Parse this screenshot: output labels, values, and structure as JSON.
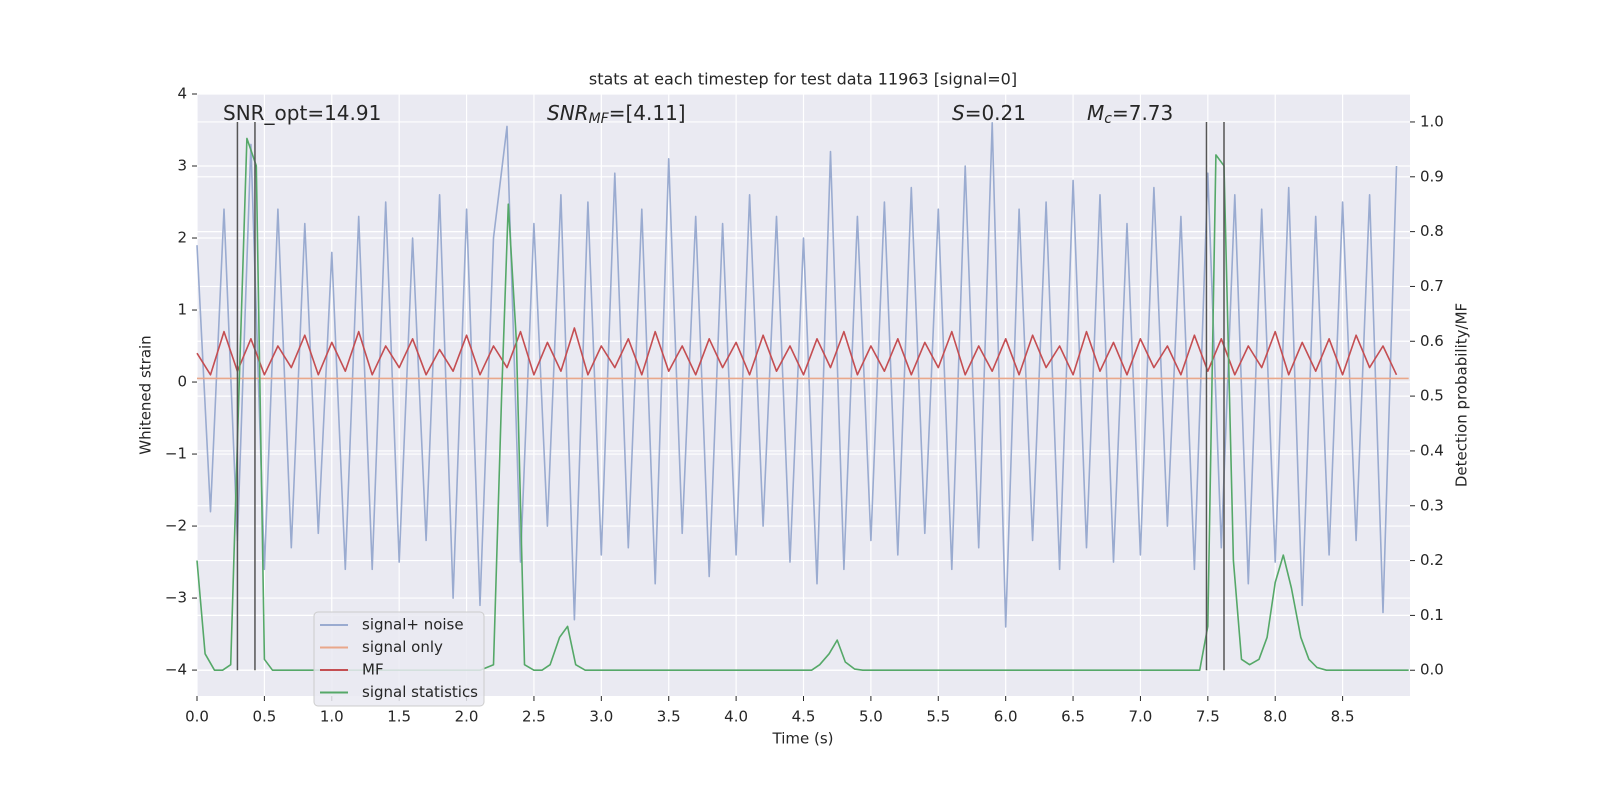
{
  "chart_data": {
    "type": "line",
    "title": "stats at each timestep for test data 11963 [signal=0]",
    "xlabel": "Time (s)",
    "ylabel": "Whitened strain",
    "y2label": "Detection probability/MF",
    "xlim": [
      0,
      9.0
    ],
    "ylim": [
      -4.36,
      4.0
    ],
    "y2lim": [
      -0.047,
      1.051
    ],
    "xticks": [
      {
        "value": 0,
        "label": "0.0"
      },
      0.5,
      {
        "value": 1,
        "label": "1.0"
      },
      1.5,
      {
        "value": 2,
        "label": "2.0"
      },
      2.5,
      {
        "value": 3,
        "label": "3.0"
      },
      3.5,
      {
        "value": 4,
        "label": "4.0"
      },
      4.5,
      {
        "value": 5,
        "label": "5.0"
      },
      5.5,
      {
        "value": 6,
        "label": "6.0"
      },
      6.5,
      {
        "value": 7,
        "label": "7.0"
      },
      7.5,
      {
        "value": 8,
        "label": "8.0"
      },
      8.5
    ],
    "yticks": [
      {
        "value": -4,
        "label": "−4"
      },
      {
        "value": -3,
        "label": "−3"
      },
      {
        "value": -2,
        "label": "−2"
      },
      {
        "value": -1,
        "label": "−1"
      },
      0,
      1,
      2,
      3,
      4
    ],
    "y2ticks": [
      {
        "value": 0,
        "label": "0.0"
      },
      0.1,
      0.2,
      0.3,
      0.4,
      0.5,
      0.6,
      0.7,
      0.8,
      0.9,
      {
        "value": 1,
        "label": "1.0"
      }
    ],
    "grid": true,
    "legend": "lower left",
    "vlines": [
      0.3,
      0.43,
      7.49,
      7.62
    ],
    "vline_color": "#555555",
    "annotations": [
      {
        "base": "SNR_opt=14.91"
      },
      {
        "base": "SNR",
        "sub": "MF",
        "rest": "=[4.11]"
      },
      {
        "base": "S",
        "rest": "=0.21"
      },
      {
        "base": "M",
        "sub": "c",
        "rest": "=7.73"
      }
    ],
    "series": [
      {
        "name": "signal+ noise",
        "color": "#9aabd0",
        "x": [
          0,
          0.1,
          0.2,
          0.3,
          0.4,
          0.5,
          0.6,
          0.7,
          0.8,
          0.9,
          1.0,
          1.1,
          1.2,
          1.3,
          1.4,
          1.5,
          1.6,
          1.7,
          1.8,
          1.9,
          2.0,
          2.1,
          2.2,
          2.3,
          2.4,
          2.5,
          2.6,
          2.7,
          2.8,
          2.9,
          3.0,
          3.1,
          3.2,
          3.3,
          3.4,
          3.5,
          3.6,
          3.7,
          3.8,
          3.9,
          4.0,
          4.1,
          4.2,
          4.3,
          4.4,
          4.5,
          4.6,
          4.7,
          4.8,
          4.9,
          5.0,
          5.1,
          5.2,
          5.3,
          5.4,
          5.5,
          5.6,
          5.7,
          5.8,
          5.9,
          6.0,
          6.1,
          6.2,
          6.3,
          6.4,
          6.5,
          6.6,
          6.7,
          6.8,
          6.9,
          7.0,
          7.1,
          7.2,
          7.3,
          7.4,
          7.5,
          7.6,
          7.7,
          7.8,
          7.9,
          8.0,
          8.1,
          8.2,
          8.3,
          8.4,
          8.5,
          8.6,
          8.7,
          8.8,
          8.9
        ],
        "values": [
          1.9,
          -1.8,
          2.4,
          -2.2,
          3.3,
          -2.6,
          2.4,
          -2.3,
          2.2,
          -2.1,
          1.8,
          -2.6,
          2.3,
          -2.6,
          2.5,
          -2.5,
          2.0,
          -2.2,
          2.6,
          -3.0,
          2.4,
          -3.1,
          2.0,
          3.55,
          -2.5,
          2.2,
          -2.0,
          2.6,
          -3.3,
          2.5,
          -2.4,
          2.9,
          -2.3,
          2.4,
          -2.8,
          3.1,
          -2.1,
          2.3,
          -2.7,
          2.2,
          -2.4,
          2.6,
          -2.0,
          2.3,
          -2.5,
          2.0,
          -2.8,
          3.2,
          -2.6,
          2.3,
          -2.2,
          2.5,
          -2.4,
          2.7,
          -2.1,
          2.4,
          -2.6,
          3.0,
          -2.3,
          3.6,
          -3.4,
          2.4,
          -2.2,
          2.5,
          -2.6,
          2.8,
          -2.3,
          2.6,
          -2.5,
          2.2,
          -2.4,
          2.7,
          -2.0,
          2.3,
          -2.6,
          2.9,
          -2.3,
          2.6,
          -2.8,
          2.4,
          -2.5,
          2.7,
          -3.1,
          2.3,
          -2.4,
          2.5,
          -2.2,
          2.6,
          -3.2,
          3.0
        ]
      },
      {
        "name": "signal only",
        "color": "#e9a78a",
        "x": [
          0,
          8.99
        ],
        "values": [
          0.05,
          0.05
        ]
      },
      {
        "name": "MF",
        "color": "#c44e52",
        "x": [
          0,
          0.1,
          0.2,
          0.3,
          0.4,
          0.5,
          0.6,
          0.7,
          0.8,
          0.9,
          1.0,
          1.1,
          1.2,
          1.3,
          1.4,
          1.5,
          1.6,
          1.7,
          1.8,
          1.9,
          2.0,
          2.1,
          2.2,
          2.3,
          2.4,
          2.5,
          2.6,
          2.7,
          2.8,
          2.9,
          3.0,
          3.1,
          3.2,
          3.3,
          3.4,
          3.5,
          3.6,
          3.7,
          3.8,
          3.9,
          4.0,
          4.1,
          4.2,
          4.3,
          4.4,
          4.5,
          4.6,
          4.7,
          4.8,
          4.9,
          5.0,
          5.1,
          5.2,
          5.3,
          5.4,
          5.5,
          5.6,
          5.7,
          5.8,
          5.9,
          6.0,
          6.1,
          6.2,
          6.3,
          6.4,
          6.5,
          6.6,
          6.7,
          6.8,
          6.9,
          7.0,
          7.1,
          7.2,
          7.3,
          7.4,
          7.5,
          7.6,
          7.7,
          7.8,
          7.9,
          8.0,
          8.1,
          8.2,
          8.3,
          8.4,
          8.5,
          8.6,
          8.7,
          8.8,
          8.9
        ],
        "values": [
          0.4,
          0.1,
          0.7,
          0.15,
          0.6,
          0.1,
          0.5,
          0.2,
          0.65,
          0.1,
          0.55,
          0.15,
          0.7,
          0.1,
          0.5,
          0.2,
          0.6,
          0.1,
          0.45,
          0.15,
          0.65,
          0.1,
          0.5,
          0.2,
          0.7,
          0.1,
          0.55,
          0.15,
          0.75,
          0.1,
          0.5,
          0.2,
          0.6,
          0.1,
          0.7,
          0.15,
          0.5,
          0.1,
          0.6,
          0.2,
          0.55,
          0.1,
          0.65,
          0.15,
          0.5,
          0.1,
          0.6,
          0.2,
          0.7,
          0.1,
          0.5,
          0.15,
          0.6,
          0.1,
          0.55,
          0.2,
          0.7,
          0.1,
          0.5,
          0.15,
          0.6,
          0.1,
          0.65,
          0.2,
          0.5,
          0.1,
          0.7,
          0.15,
          0.55,
          0.1,
          0.6,
          0.2,
          0.5,
          0.1,
          0.65,
          0.15,
          0.6,
          0.1,
          0.5,
          0.2,
          0.7,
          0.1,
          0.55,
          0.15,
          0.6,
          0.1,
          0.65,
          0.2,
          0.5,
          0.1
        ]
      },
      {
        "name": "signal statistics",
        "color": "#55a868",
        "axis": "y2",
        "x": [
          0,
          0.06,
          0.13,
          0.19,
          0.25,
          0.31,
          0.37,
          0.44,
          0.5,
          0.56,
          2.1,
          2.2,
          2.26,
          2.31,
          2.37,
          2.43,
          2.5,
          2.56,
          2.62,
          2.69,
          2.75,
          2.81,
          2.88,
          4.56,
          4.62,
          4.69,
          4.75,
          4.81,
          4.88,
          4.94,
          7.44,
          7.5,
          7.56,
          7.62,
          7.69,
          7.75,
          7.81,
          7.88,
          7.94,
          8.0,
          8.06,
          8.12,
          8.19,
          8.25,
          8.31,
          8.38,
          8.99
        ],
        "values": [
          0.2,
          0.03,
          0.0,
          0.0,
          0.01,
          0.5,
          0.97,
          0.92,
          0.02,
          0.0,
          0.0,
          0.01,
          0.5,
          0.85,
          0.6,
          0.01,
          0.0,
          0.0,
          0.01,
          0.06,
          0.08,
          0.01,
          0.0,
          0.0,
          0.01,
          0.03,
          0.055,
          0.015,
          0.002,
          0.0,
          0.0,
          0.08,
          0.94,
          0.92,
          0.2,
          0.02,
          0.01,
          0.02,
          0.06,
          0.16,
          0.21,
          0.15,
          0.06,
          0.02,
          0.005,
          0.0,
          0.0
        ]
      }
    ]
  }
}
